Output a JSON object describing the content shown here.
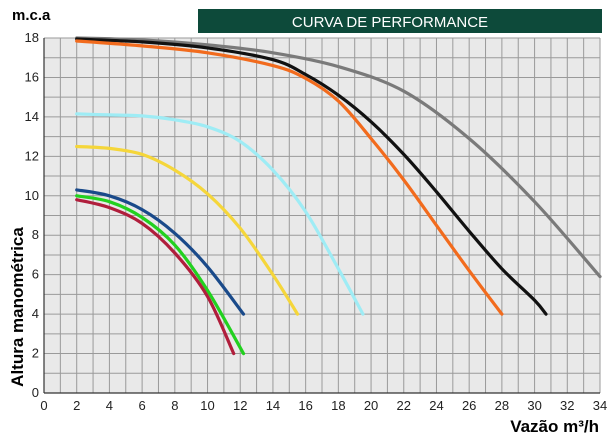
{
  "banner": {
    "title": "CURVA DE PERFORMANCE",
    "color": "#0d4a3a"
  },
  "chart_data": {
    "type": "line",
    "title": "CURVA DE PERFORMANCE",
    "ylabel": "Altura manométrica",
    "y_unit": "m.c.a",
    "xlabel": "Vazão m³/h",
    "xlim": [
      0,
      34
    ],
    "ylim": [
      0,
      18
    ],
    "x_ticks": [
      0,
      2,
      4,
      6,
      8,
      10,
      12,
      14,
      16,
      18,
      20,
      22,
      24,
      26,
      28,
      30,
      32,
      34
    ],
    "y_ticks": [
      0,
      2,
      4,
      6,
      8,
      10,
      12,
      14,
      16,
      18
    ],
    "grid": true,
    "series": [
      {
        "color": "#7a7a7a",
        "x": [
          2,
          6,
          10,
          14,
          18,
          22,
          26,
          30,
          34
        ],
        "y": [
          18.0,
          17.9,
          17.65,
          17.25,
          16.55,
          15.3,
          12.9,
          9.7,
          5.9
        ]
      },
      {
        "color": "#111111",
        "x": [
          2,
          6,
          10,
          14,
          16,
          18,
          20,
          22,
          24,
          26,
          28,
          30,
          30.7
        ],
        "y": [
          17.95,
          17.8,
          17.5,
          16.9,
          16.15,
          15.1,
          13.75,
          12.1,
          10.2,
          8.2,
          6.3,
          4.7,
          4.0
        ]
      },
      {
        "color": "#f26b1d",
        "x": [
          2,
          6,
          10,
          14,
          16,
          18,
          20,
          22,
          24,
          26,
          28
        ],
        "y": [
          17.85,
          17.6,
          17.25,
          16.6,
          15.95,
          14.8,
          12.9,
          10.8,
          8.5,
          6.2,
          4.0
        ]
      },
      {
        "color": "#9eecf5",
        "x": [
          2,
          4,
          6,
          8,
          10,
          12,
          14,
          16,
          18,
          19.5
        ],
        "y": [
          14.15,
          14.1,
          14.05,
          13.85,
          13.5,
          12.75,
          11.3,
          9.2,
          6.3,
          4.0
        ]
      },
      {
        "color": "#f5d63a",
        "x": [
          2,
          4,
          6,
          8,
          10,
          12,
          14,
          15.5
        ],
        "y": [
          12.5,
          12.4,
          12.1,
          11.3,
          10.1,
          8.35,
          6.0,
          4.0
        ]
      },
      {
        "color": "#1a4a8a",
        "x": [
          2,
          4,
          6,
          8,
          10,
          12.2
        ],
        "y": [
          10.3,
          10.0,
          9.3,
          8.1,
          6.4,
          4.0
        ]
      },
      {
        "color": "#22d11f",
        "x": [
          2,
          4,
          6,
          8,
          10,
          12.2
        ],
        "y": [
          10.0,
          9.7,
          8.9,
          7.5,
          5.2,
          2.0
        ]
      },
      {
        "color": "#b01e3c",
        "x": [
          2,
          4,
          6,
          8,
          10,
          11.6
        ],
        "y": [
          9.8,
          9.4,
          8.6,
          7.1,
          4.9,
          2.0
        ]
      }
    ]
  }
}
